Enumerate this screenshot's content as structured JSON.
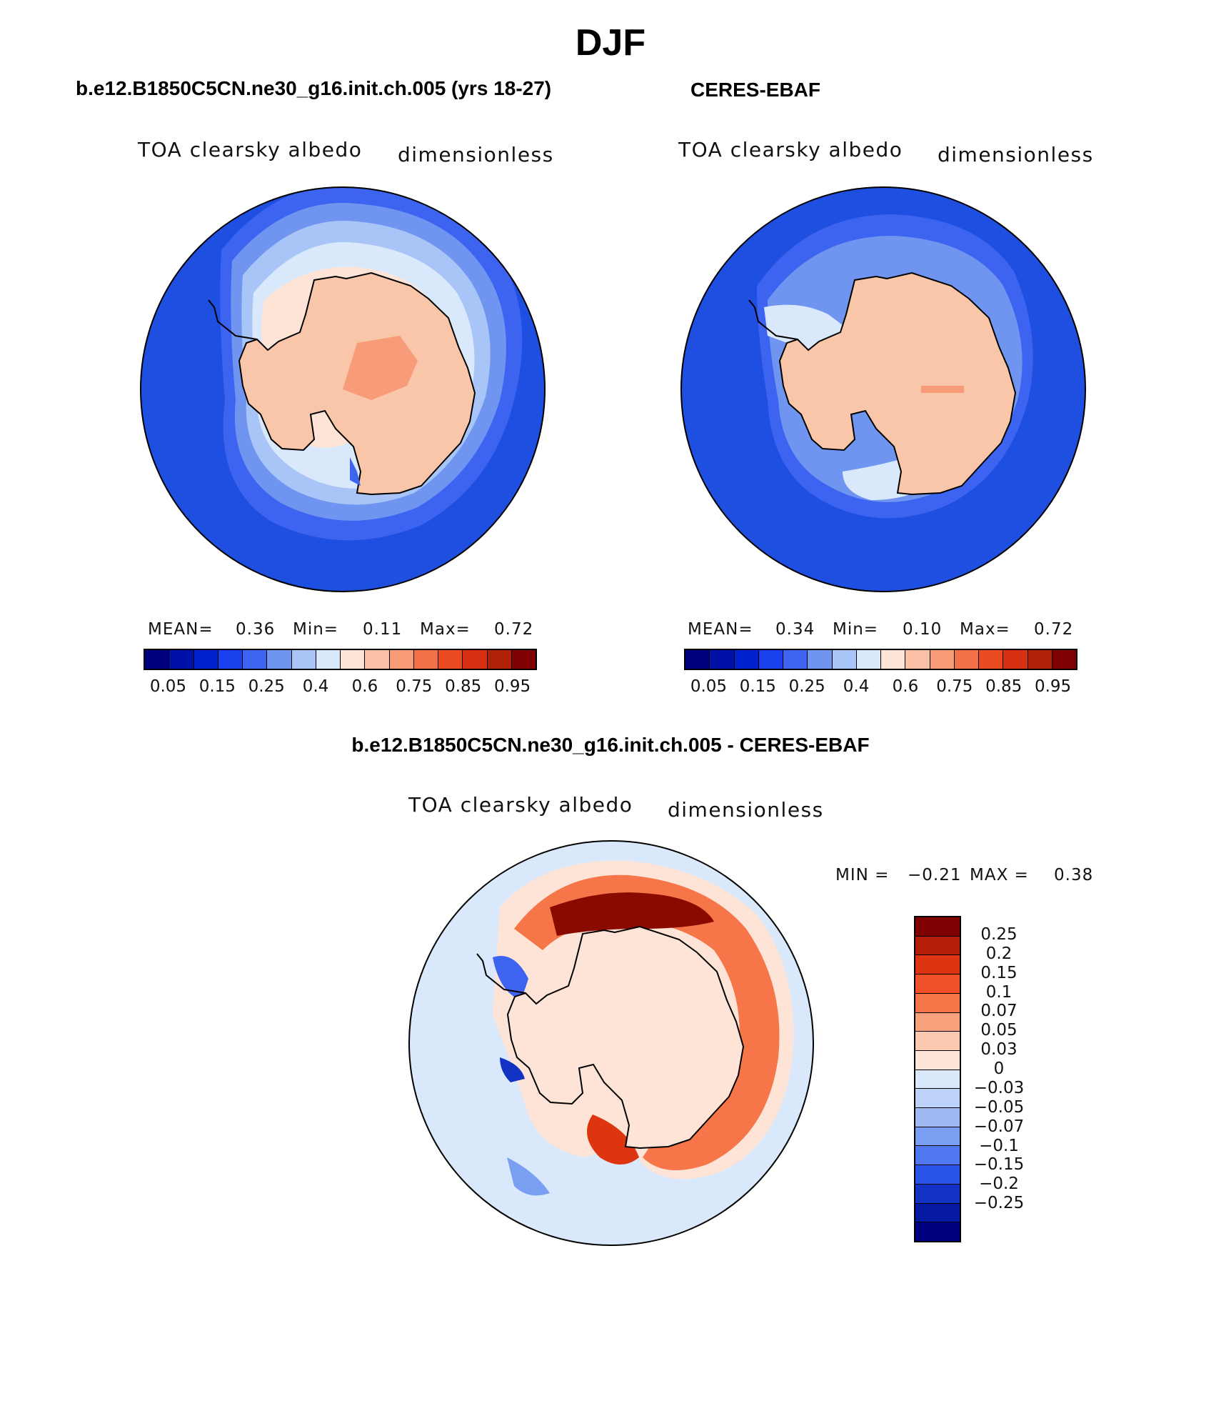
{
  "page": {
    "title": "DJF"
  },
  "panels": {
    "left": {
      "title": "b.e12.B1850C5CN.ne30_g16.init.ch.005 (yrs 18-27)",
      "variable": "TOA clearsky albedo",
      "units": "dimensionless",
      "stats": {
        "mean_label": "MEAN=",
        "mean": "0.36",
        "min_label": "Min=",
        "min": "0.11",
        "max_label": "Max=",
        "max": "0.72"
      }
    },
    "right": {
      "title": "CERES-EBAF",
      "variable": "TOA clearsky albedo",
      "units": "dimensionless",
      "stats": {
        "mean_label": "MEAN=",
        "mean": "0.34",
        "min_label": "Min=",
        "min": "0.10",
        "max_label": "Max=",
        "max": "0.72"
      }
    },
    "diff": {
      "title": "b.e12.B1850C5CN.ne30_g16.init.ch.005 - CERES-EBAF",
      "variable": "TOA clearsky albedo",
      "units": "dimensionless",
      "stats": {
        "min_label": "MIN =",
        "min": "−0.21",
        "max_label": "MAX =",
        "max": "0.38"
      }
    }
  },
  "legends": {
    "abs": {
      "colors": [
        "#00007f",
        "#0011a8",
        "#0022cc",
        "#1a40ee",
        "#3c64f0",
        "#6f95f0",
        "#a9c4f7",
        "#d9e8fb",
        "#fde4d6",
        "#f9c0a6",
        "#f79b78",
        "#f27148",
        "#ec4a20",
        "#d83012",
        "#b12008",
        "#7f0000"
      ],
      "labels": [
        "0.05",
        "0.15",
        "0.25",
        "0.4",
        "0.6",
        "0.75",
        "0.85",
        "0.95"
      ]
    },
    "diff": {
      "colors_top_to_bottom": [
        "#7f0000",
        "#b21e08",
        "#dd3510",
        "#f05128",
        "#f6764a",
        "#f9a07c",
        "#fcc8b0",
        "#fde6d7",
        "#d9e8fb",
        "#bcd2f8",
        "#9dbaf5",
        "#7a9ef2",
        "#4f78f0",
        "#2a54e8",
        "#1232c4",
        "#0418a2",
        "#00007f"
      ],
      "labels_top_to_bottom": [
        "0.25",
        "0.2",
        "0.15",
        "0.1",
        "0.07",
        "0.05",
        "0.03",
        "0",
        "−0.03",
        "−0.05",
        "−0.07",
        "−0.1",
        "−0.15",
        "−0.2",
        "−0.25"
      ]
    }
  },
  "map_colors": {
    "ocean_low": "#1f4fe0",
    "land": "#f9c6aa",
    "diff_background": "#d9e8fb",
    "diff_positive": "#e8401c",
    "diff_positive_strong": "#8a0a00",
    "diff_negative": "#3c64f0"
  },
  "chart_data": [
    {
      "type": "heatmap",
      "title": "b.e12.B1850C5CN.ne30_g16.init.ch.005 (yrs 18-27)",
      "variable": "TOA clearsky albedo",
      "units": "dimensionless",
      "projection": "south polar stereographic",
      "mean": 0.36,
      "min": 0.11,
      "max": 0.72,
      "levels": [
        0.05,
        0.1,
        0.15,
        0.2,
        0.25,
        0.3,
        0.4,
        0.5,
        0.6,
        0.7,
        0.75,
        0.8,
        0.85,
        0.9,
        0.95
      ]
    },
    {
      "type": "heatmap",
      "title": "CERES-EBAF",
      "variable": "TOA clearsky albedo",
      "units": "dimensionless",
      "projection": "south polar stereographic",
      "mean": 0.34,
      "min": 0.1,
      "max": 0.72,
      "levels": [
        0.05,
        0.1,
        0.15,
        0.2,
        0.25,
        0.3,
        0.4,
        0.5,
        0.6,
        0.7,
        0.75,
        0.8,
        0.85,
        0.9,
        0.95
      ]
    },
    {
      "type": "heatmap",
      "title": "b.e12.B1850C5CN.ne30_g16.init.ch.005 - CERES-EBAF",
      "variable": "TOA clearsky albedo",
      "units": "dimensionless",
      "projection": "south polar stereographic",
      "min": -0.21,
      "max": 0.38,
      "levels": [
        -0.25,
        -0.2,
        -0.15,
        -0.1,
        -0.07,
        -0.05,
        -0.03,
        0,
        0.03,
        0.05,
        0.07,
        0.1,
        0.15,
        0.2,
        0.25
      ]
    }
  ]
}
